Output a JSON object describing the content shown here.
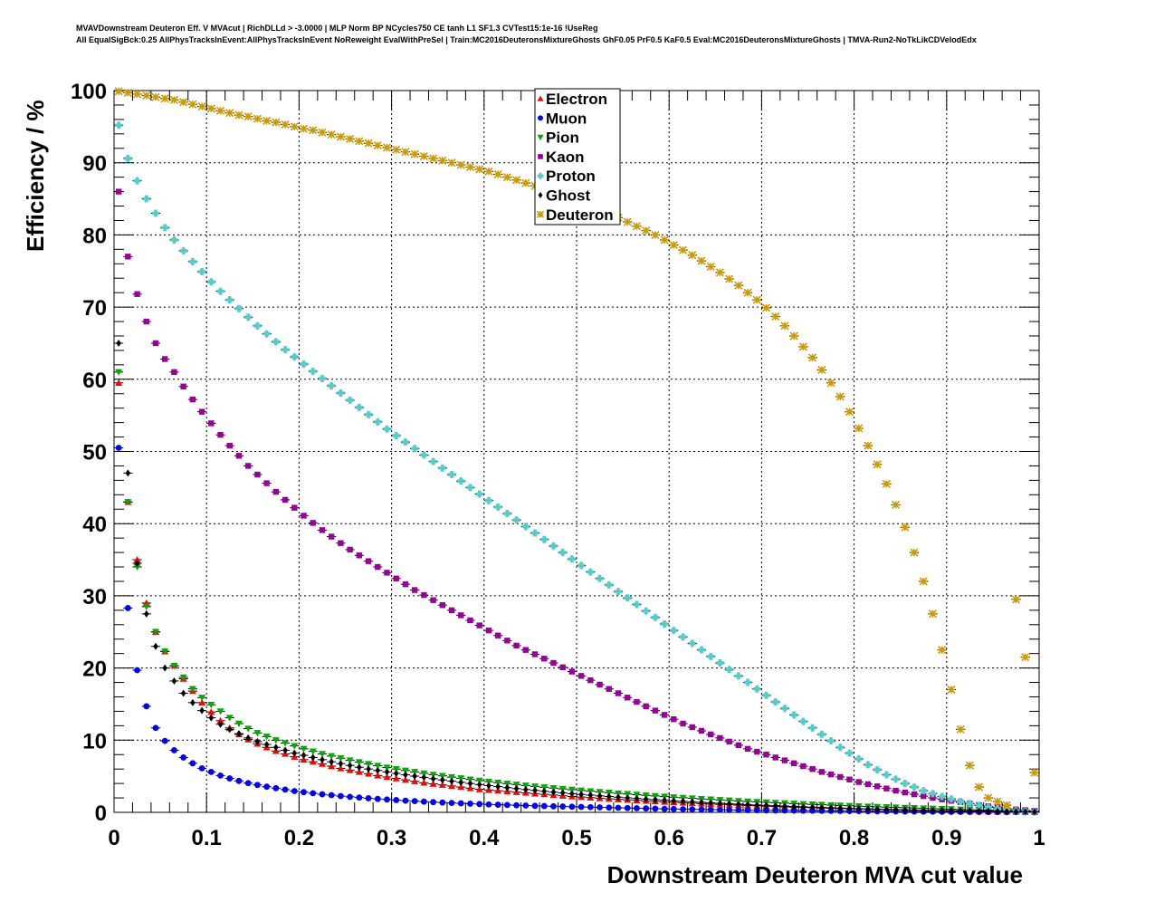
{
  "chart_data": {
    "type": "scatter",
    "title_line1": "MVAVDownstream Deuteron Eff. V MVAcut | RichDLLd > -3.0000 | MLP Norm BP NCycles750 CE tanh L1 SF1.3 CVTest15:1e-16 !UseReg",
    "title_line2": "All EqualSigBck:0.25 AllPhysTracksInEvent:AllPhysTracksInEvent NoReweight EvalWithPreSel | Train:MC2016DeuteronsMixtureGhosts GhF0.05 PrF0.5 KaF0.5 Eval:MC2016DeuteronsMixtureGhosts | TMVA-Run2-NoTkLikCDVelodEdx",
    "xlabel": "Downstream Deuteron MVA cut value",
    "ylabel": "Efficiency / %",
    "xlim": [
      0,
      1
    ],
    "ylim": [
      0,
      100
    ],
    "xticks": [
      "0",
      "0.1",
      "0.2",
      "0.3",
      "0.4",
      "0.5",
      "0.6",
      "0.7",
      "0.8",
      "0.9",
      "1"
    ],
    "yticks": [
      "0",
      "10",
      "20",
      "30",
      "40",
      "50",
      "60",
      "70",
      "80",
      "90",
      "100"
    ],
    "x": [
      0.005,
      0.015,
      0.025,
      0.035,
      0.045,
      0.055,
      0.065,
      0.075,
      0.085,
      0.095,
      0.105,
      0.115,
      0.125,
      0.135,
      0.145,
      0.155,
      0.165,
      0.175,
      0.185,
      0.195,
      0.205,
      0.215,
      0.225,
      0.235,
      0.245,
      0.255,
      0.265,
      0.275,
      0.285,
      0.295,
      0.305,
      0.315,
      0.325,
      0.335,
      0.345,
      0.355,
      0.365,
      0.375,
      0.385,
      0.395,
      0.405,
      0.415,
      0.425,
      0.435,
      0.445,
      0.455,
      0.465,
      0.475,
      0.485,
      0.495,
      0.505,
      0.515,
      0.525,
      0.535,
      0.545,
      0.555,
      0.565,
      0.575,
      0.585,
      0.595,
      0.605,
      0.615,
      0.625,
      0.635,
      0.645,
      0.655,
      0.665,
      0.675,
      0.685,
      0.695,
      0.705,
      0.715,
      0.725,
      0.735,
      0.745,
      0.755,
      0.765,
      0.775,
      0.785,
      0.795,
      0.805,
      0.815,
      0.825,
      0.835,
      0.845,
      0.855,
      0.865,
      0.875,
      0.885,
      0.895,
      0.905,
      0.915,
      0.925,
      0.935,
      0.945,
      0.955,
      0.965,
      0.975,
      0.985,
      0.995
    ],
    "series": [
      {
        "name": "Electron",
        "color": "#ff0000",
        "marker": "triangle-up",
        "values": [
          59.5,
          43,
          35,
          29,
          25,
          22.3,
          20.3,
          18.5,
          16.8,
          15.2,
          13.9,
          12.7,
          11.7,
          10.8,
          10.1,
          9.5,
          9.0,
          8.5,
          8.1,
          7.7,
          7.3,
          7.0,
          6.7,
          6.4,
          6.1,
          5.85,
          5.6,
          5.35,
          5.1,
          4.9,
          4.7,
          4.5,
          4.3,
          4.1,
          3.95,
          3.8,
          3.65,
          3.5,
          3.35,
          3.2,
          3.1,
          3.0,
          2.9,
          2.8,
          2.7,
          2.6,
          2.5,
          2.4,
          2.3,
          2.2,
          2.12,
          2.04,
          1.96,
          1.88,
          1.8,
          1.73,
          1.66,
          1.59,
          1.52,
          1.45,
          1.39,
          1.33,
          1.27,
          1.21,
          1.15,
          1.1,
          1.05,
          1.0,
          0.95,
          0.9,
          0.85,
          0.8,
          0.76,
          0.72,
          0.68,
          0.64,
          0.6,
          0.56,
          0.53,
          0.5,
          0.47,
          0.44,
          0.41,
          0.38,
          0.35,
          0.32,
          0.3,
          0.28,
          0.26,
          0.24,
          0.22,
          0.2,
          0.18,
          0.16,
          0.14,
          0.12,
          0.1,
          0.08,
          0.06,
          0.04
        ]
      },
      {
        "name": "Muon",
        "color": "#0000ff",
        "marker": "circle",
        "values": [
          50.5,
          28.3,
          19.7,
          14.7,
          11.7,
          9.9,
          8.6,
          7.6,
          6.8,
          6.1,
          5.6,
          5.1,
          4.7,
          4.35,
          4.05,
          3.8,
          3.55,
          3.35,
          3.15,
          2.95,
          2.8,
          2.65,
          2.5,
          2.38,
          2.26,
          2.15,
          2.05,
          1.95,
          1.86,
          1.78,
          1.7,
          1.62,
          1.55,
          1.48,
          1.42,
          1.36,
          1.3,
          1.25,
          1.2,
          1.15,
          1.1,
          1.06,
          1.02,
          0.98,
          0.94,
          0.9,
          0.87,
          0.84,
          0.81,
          0.78,
          0.75,
          0.72,
          0.69,
          0.66,
          0.63,
          0.6,
          0.57,
          0.54,
          0.51,
          0.48,
          0.46,
          0.44,
          0.42,
          0.4,
          0.38,
          0.36,
          0.34,
          0.32,
          0.3,
          0.28,
          0.27,
          0.26,
          0.25,
          0.24,
          0.23,
          0.22,
          0.21,
          0.2,
          0.19,
          0.18,
          0.17,
          0.16,
          0.15,
          0.14,
          0.13,
          0.12,
          0.11,
          0.1,
          0.09,
          0.08,
          0.07,
          0.06,
          0.05,
          0.05,
          0.04,
          0.04,
          0.03,
          0.03,
          0.02,
          0.02
        ]
      },
      {
        "name": "Pion",
        "color": "#00aa00",
        "marker": "triangle-down",
        "values": [
          61,
          43,
          34,
          28.5,
          25,
          22.3,
          20.3,
          18.7,
          17.1,
          15.9,
          14.9,
          14.0,
          13.1,
          12.3,
          11.6,
          11.0,
          10.5,
          10.0,
          9.6,
          9.2,
          8.8,
          8.45,
          8.1,
          7.8,
          7.5,
          7.2,
          6.95,
          6.7,
          6.45,
          6.2,
          6.0,
          5.8,
          5.6,
          5.4,
          5.22,
          5.05,
          4.88,
          4.72,
          4.56,
          4.4,
          4.26,
          4.12,
          3.98,
          3.85,
          3.72,
          3.6,
          3.48,
          3.36,
          3.25,
          3.14,
          3.03,
          2.93,
          2.83,
          2.73,
          2.63,
          2.54,
          2.45,
          2.36,
          2.27,
          2.18,
          2.1,
          2.02,
          1.94,
          1.86,
          1.79,
          1.72,
          1.65,
          1.58,
          1.51,
          1.45,
          1.39,
          1.33,
          1.27,
          1.21,
          1.15,
          1.1,
          1.05,
          1.0,
          0.95,
          0.9,
          0.85,
          0.8,
          0.76,
          0.72,
          0.68,
          0.64,
          0.6,
          0.56,
          0.52,
          0.48,
          0.44,
          0.4,
          0.37,
          0.34,
          0.31,
          0.28,
          0.25,
          0.22,
          0.2,
          0.18
        ]
      },
      {
        "name": "Kaon",
        "color": "#990099",
        "marker": "square",
        "values": [
          86,
          77,
          71.8,
          68,
          65,
          62.8,
          61,
          59,
          57.2,
          55.5,
          53.9,
          52.3,
          50.8,
          49.4,
          48,
          46.8,
          45.6,
          44.4,
          43.3,
          42.2,
          41.1,
          40.1,
          39.1,
          38.2,
          37.3,
          36.4,
          35.6,
          34.8,
          34.0,
          33.2,
          32.4,
          31.6,
          30.8,
          30.1,
          29.4,
          28.7,
          28.0,
          27.3,
          26.6,
          25.9,
          25.2,
          24.5,
          23.8,
          23.1,
          22.5,
          21.9,
          21.3,
          20.7,
          20.1,
          19.5,
          18.9,
          18.3,
          17.7,
          17.1,
          16.5,
          15.9,
          15.3,
          14.7,
          14.1,
          13.5,
          12.9,
          12.3,
          11.8,
          11.3,
          10.8,
          10.3,
          9.8,
          9.3,
          8.8,
          8.4,
          8.0,
          7.6,
          7.2,
          6.8,
          6.4,
          6.0,
          5.6,
          5.25,
          4.9,
          4.55,
          4.2,
          3.9,
          3.6,
          3.3,
          3.0,
          2.75,
          2.5,
          2.25,
          2.0,
          1.8,
          1.6,
          1.4,
          1.2,
          1.0,
          0.85,
          0.7,
          0.55,
          0.4,
          0.3,
          0.2
        ]
      },
      {
        "name": "Proton",
        "color": "#55cccc",
        "marker": "cross",
        "values": [
          95.2,
          90.6,
          87.5,
          85,
          83,
          81,
          79.3,
          77.8,
          76.3,
          74.9,
          73.5,
          72.2,
          71.0,
          69.8,
          68.6,
          67.4,
          66.3,
          65.2,
          64.1,
          63.1,
          62.1,
          61.1,
          60.1,
          59.1,
          58.1,
          57.1,
          56.1,
          55.1,
          54.1,
          53.1,
          52.2,
          51.3,
          50.4,
          49.5,
          48.6,
          47.7,
          46.8,
          45.9,
          45.0,
          44.1,
          43.2,
          42.3,
          41.4,
          40.5,
          39.6,
          38.7,
          37.8,
          36.9,
          36.0,
          35.1,
          34.2,
          33.3,
          32.4,
          31.5,
          30.6,
          29.7,
          28.8,
          27.9,
          27.0,
          26.1,
          25.2,
          24.3,
          23.4,
          22.5,
          21.6,
          20.7,
          19.8,
          18.9,
          18.0,
          17.1,
          16.2,
          15.3,
          14.4,
          13.5,
          12.6,
          11.7,
          10.8,
          9.9,
          9.0,
          8.2,
          7.4,
          6.6,
          5.9,
          5.2,
          4.6,
          4.0,
          3.5,
          3.0,
          2.6,
          2.2,
          1.85,
          1.5,
          1.2,
          0.95,
          0.7,
          0.5,
          0.35,
          0.2,
          0.12,
          0.06
        ]
      },
      {
        "name": "Ghost",
        "color": "#000000",
        "marker": "diamond",
        "values": [
          65,
          47,
          34.5,
          27.5,
          23,
          20,
          18.2,
          16.5,
          15.2,
          14.1,
          13.1,
          12.2,
          11.5,
          10.9,
          10.3,
          9.8,
          9.4,
          9.0,
          8.6,
          8.2,
          7.9,
          7.6,
          7.3,
          7.0,
          6.75,
          6.5,
          6.25,
          6.0,
          5.8,
          5.6,
          5.4,
          5.2,
          5.02,
          4.84,
          4.66,
          4.48,
          4.32,
          4.16,
          4.0,
          3.85,
          3.7,
          3.56,
          3.42,
          3.29,
          3.16,
          3.04,
          2.92,
          2.8,
          2.69,
          2.58,
          2.48,
          2.38,
          2.28,
          2.19,
          2.1,
          2.01,
          1.92,
          1.84,
          1.76,
          1.68,
          1.6,
          1.53,
          1.46,
          1.39,
          1.32,
          1.26,
          1.2,
          1.14,
          1.08,
          1.02,
          0.97,
          0.92,
          0.87,
          0.82,
          0.77,
          0.72,
          0.68,
          0.64,
          0.6,
          0.56,
          0.52,
          0.48,
          0.45,
          0.42,
          0.39,
          0.36,
          0.33,
          0.3,
          0.28,
          0.26,
          0.24,
          0.22,
          0.2,
          0.18,
          0.16,
          0.14,
          0.12,
          0.1,
          0.08,
          0.06
        ]
      },
      {
        "name": "Deuteron",
        "color": "#cc9900",
        "marker": "star",
        "values": [
          99.9,
          99.7,
          99.5,
          99.3,
          99.1,
          98.9,
          98.7,
          98.4,
          98.1,
          97.8,
          97.5,
          97.2,
          96.9,
          96.6,
          96.4,
          96.1,
          95.8,
          95.6,
          95.3,
          95.0,
          94.7,
          94.5,
          94.2,
          93.9,
          93.6,
          93.3,
          93.0,
          92.7,
          92.4,
          92.1,
          91.8,
          91.5,
          91.2,
          90.9,
          90.6,
          90.3,
          90.0,
          89.7,
          89.4,
          89.1,
          88.8,
          88.4,
          88.0,
          87.6,
          87.2,
          86.8,
          86.4,
          85.9,
          85.4,
          84.9,
          84.4,
          83.9,
          83.4,
          82.9,
          82.4,
          81.8,
          81.2,
          80.6,
          80.0,
          79.3,
          78.6,
          77.9,
          77.2,
          76.4,
          75.6,
          74.8,
          73.9,
          73.0,
          72.0,
          71.0,
          69.9,
          68.7,
          67.4,
          66.0,
          64.5,
          63.0,
          61.3,
          59.5,
          57.6,
          55.5,
          53.2,
          50.8,
          48.2,
          45.5,
          42.6,
          39.5,
          36.0,
          32.0,
          27.5,
          22.5,
          17.0,
          11.5,
          6.5,
          3.5,
          2.0,
          1.5,
          1.0,
          29.5,
          21.5,
          5.5
        ]
      }
    ],
    "legend": {
      "position": "top-center-right"
    }
  }
}
